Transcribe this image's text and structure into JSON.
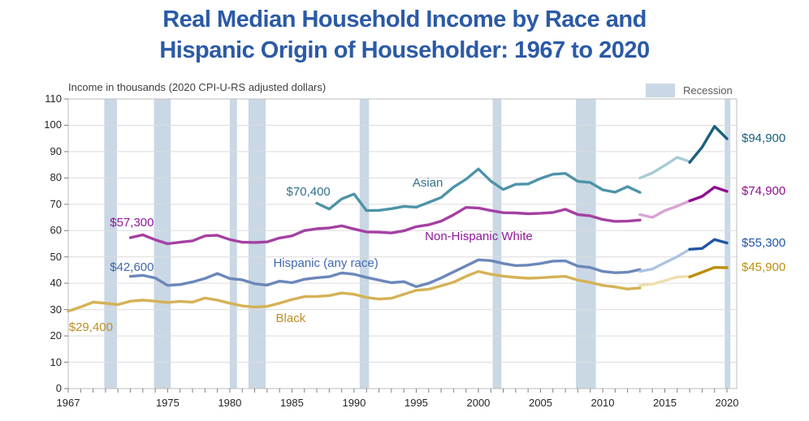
{
  "title": {
    "text_line1": "Real Median Household Income by Race and",
    "text_line2": "Hispanic Origin of Householder: 1967 to 2020",
    "color": "#2B5AA6"
  },
  "chart_data": {
    "type": "line",
    "title": "Real Median Household Income by Race and Hispanic Origin of Householder: 1967 to 2020",
    "subtitle": "Income in thousands (2020 CPI-U-RS adjusted dollars)",
    "xlabel": "",
    "ylabel": "Income in thousands (2020 CPI-U-RS adjusted dollars)",
    "xlim": [
      1967,
      2021
    ],
    "ylim": [
      0,
      110
    ],
    "y_tick_interval": 10,
    "x_tick_labels": [
      1967,
      1975,
      1980,
      1985,
      1990,
      1995,
      2000,
      2005,
      2010,
      2015,
      2020
    ],
    "grid": "horizontal",
    "gridline_color": "#DCDCDC",
    "axis_color": "#BDBDBD",
    "tick_color": "#7F7F7F",
    "legend": {
      "label": "Recession",
      "color": "#C9D8E4",
      "position": "top-right"
    },
    "recessions": [
      [
        1969.9,
        1970.92
      ],
      [
        1973.9,
        1975.25
      ],
      [
        1980.0,
        1980.58
      ],
      [
        1981.5,
        1982.88
      ],
      [
        1990.45,
        1991.2
      ],
      [
        2001.15,
        2001.85
      ],
      [
        2007.85,
        2009.45
      ],
      [
        2019.82,
        2020.27
      ]
    ],
    "series": [
      {
        "name": "Black",
        "annotation_color": "#BD8D26",
        "segments": [
          {
            "period": "1967-2013",
            "color": "#D5B257",
            "start_year": 1967,
            "values": [
              29.4,
              31.0,
              32.8,
              32.4,
              31.9,
              33.2,
              33.6,
              33.2,
              32.7,
              33.1,
              32.8,
              34.4,
              33.6,
              32.4,
              31.4,
              31.0,
              31.2,
              32.4,
              33.8,
              34.9,
              35.0,
              35.3,
              36.3,
              35.8,
              34.6,
              34.0,
              34.3,
              35.8,
              37.3,
              37.7,
              39.0,
              40.4,
              42.6,
              44.5,
              43.4,
              42.7,
              42.2,
              41.9,
              42.1,
              42.4,
              42.6,
              41.2,
              40.3,
              39.2,
              38.6,
              37.8,
              38.2
            ]
          },
          {
            "period": "2013-2017 redesigned",
            "color": "#EDDFAE",
            "start_year": 2013,
            "values": [
              39.2,
              39.7,
              41.0,
              42.4,
              42.6
            ]
          },
          {
            "period": "2017-2020",
            "color": "#BE8E09",
            "start_year": 2017,
            "values": [
              42.4,
              44.2,
              46.0,
              45.9
            ]
          }
        ],
        "annotations": [
          {
            "text": "$29,400",
            "year": 1967.05,
            "value": 23.0
          },
          {
            "text": "Black",
            "year": 1983.7,
            "value": 26.5
          }
        ],
        "end_label": {
          "text": "$45,900",
          "value": 45.9,
          "color": "#BE8E09"
        }
      },
      {
        "name": "Hispanic (any race)",
        "annotation_color": "#4167AE",
        "segments": [
          {
            "period": "1972-2013",
            "color": "#6C87BA",
            "start_year": 1972,
            "values": [
              42.6,
              43.0,
              42.0,
              39.2,
              39.5,
              40.5,
              41.8,
              43.7,
              41.8,
              41.3,
              39.8,
              39.3,
              40.8,
              40.2,
              41.5,
              42.1,
              42.5,
              43.9,
              43.4,
              42.2,
              41.2,
              40.2,
              40.6,
              38.7,
              40.0,
              42.0,
              44.3,
              46.6,
              48.9,
              48.6,
              47.5,
              46.7,
              46.9,
              47.5,
              48.4,
              48.5,
              46.5,
              46.0,
              44.5,
              44.0,
              44.2,
              45.2
            ]
          },
          {
            "period": "2013-2017 redesigned",
            "color": "#AEC3E1",
            "start_year": 2013,
            "values": [
              44.5,
              45.4,
              47.8,
              50.1,
              52.9
            ]
          },
          {
            "period": "2017-2020",
            "color": "#2155A3",
            "start_year": 2017,
            "values": [
              52.9,
              53.2,
              56.6,
              55.3
            ]
          }
        ],
        "annotations": [
          {
            "text": "$42,600",
            "year": 1970.35,
            "value": 46.0
          },
          {
            "text": "Hispanic (any race)",
            "year": 1983.5,
            "value": 47.5
          }
        ],
        "end_label": {
          "text": "$55,300",
          "value": 55.3,
          "color": "#2155A3"
        }
      },
      {
        "name": "Non-Hispanic White",
        "annotation_color": "#8F1999",
        "segments": [
          {
            "period": "1972-2013",
            "color": "#A540A3",
            "start_year": 1972,
            "values": [
              57.3,
              58.4,
              56.5,
              55.0,
              55.6,
              56.1,
              58.0,
              58.2,
              56.6,
              55.6,
              55.5,
              55.7,
              57.2,
              58.0,
              60.0,
              60.7,
              61.0,
              61.8,
              60.6,
              59.5,
              59.4,
              59.1,
              59.9,
              61.5,
              62.2,
              63.6,
              66.0,
              68.8,
              68.6,
              67.6,
              66.8,
              66.7,
              66.4,
              66.6,
              66.9,
              68.1,
              66.1,
              65.6,
              64.2,
              63.5,
              63.6,
              64.0
            ]
          },
          {
            "period": "2013-2017 redesigned",
            "color": "#D9A3D6",
            "start_year": 2013,
            "values": [
              66.1,
              65.0,
              67.6,
              69.3,
              71.3
            ]
          },
          {
            "period": "2017-2020",
            "color": "#8F0E8F",
            "start_year": 2017,
            "values": [
              71.3,
              73.0,
              76.5,
              74.9
            ]
          }
        ],
        "annotations": [
          {
            "text": "$57,300",
            "year": 1970.35,
            "value": 63.0
          },
          {
            "text": "Non-Hispanic White",
            "year": 1995.7,
            "value": 57.5
          }
        ],
        "end_label": {
          "text": "$74,900",
          "value": 74.9,
          "color": "#8F0E8F"
        }
      },
      {
        "name": "Asian",
        "annotation_color": "#34718A",
        "segments": [
          {
            "period": "1987-2013",
            "color": "#4E93A8",
            "start_year": 1987,
            "values": [
              70.4,
              68.2,
              72.0,
              73.9,
              67.6,
              67.7,
              68.3,
              69.2,
              68.9,
              70.7,
              72.6,
              76.5,
              79.5,
              83.4,
              78.8,
              75.6,
              77.6,
              77.7,
              79.8,
              81.4,
              81.7,
              78.7,
              78.3,
              75.5,
              74.6,
              76.7,
              74.5
            ]
          },
          {
            "period": "2013-2017 redesigned",
            "color": "#A9CAD4",
            "start_year": 2013,
            "values": [
              80.0,
              81.9,
              84.8,
              87.8,
              86.2
            ]
          },
          {
            "period": "2017-2020",
            "color": "#19607E",
            "start_year": 2017,
            "values": [
              85.9,
              91.7,
              99.6,
              94.9
            ]
          }
        ],
        "annotations": [
          {
            "text": "$70,400",
            "year": 1984.55,
            "value": 74.6
          },
          {
            "text": "Asian",
            "year": 1994.7,
            "value": 78.0
          }
        ],
        "end_label": {
          "text": "$94,900",
          "value": 94.9,
          "color": "#19607E"
        }
      }
    ]
  }
}
